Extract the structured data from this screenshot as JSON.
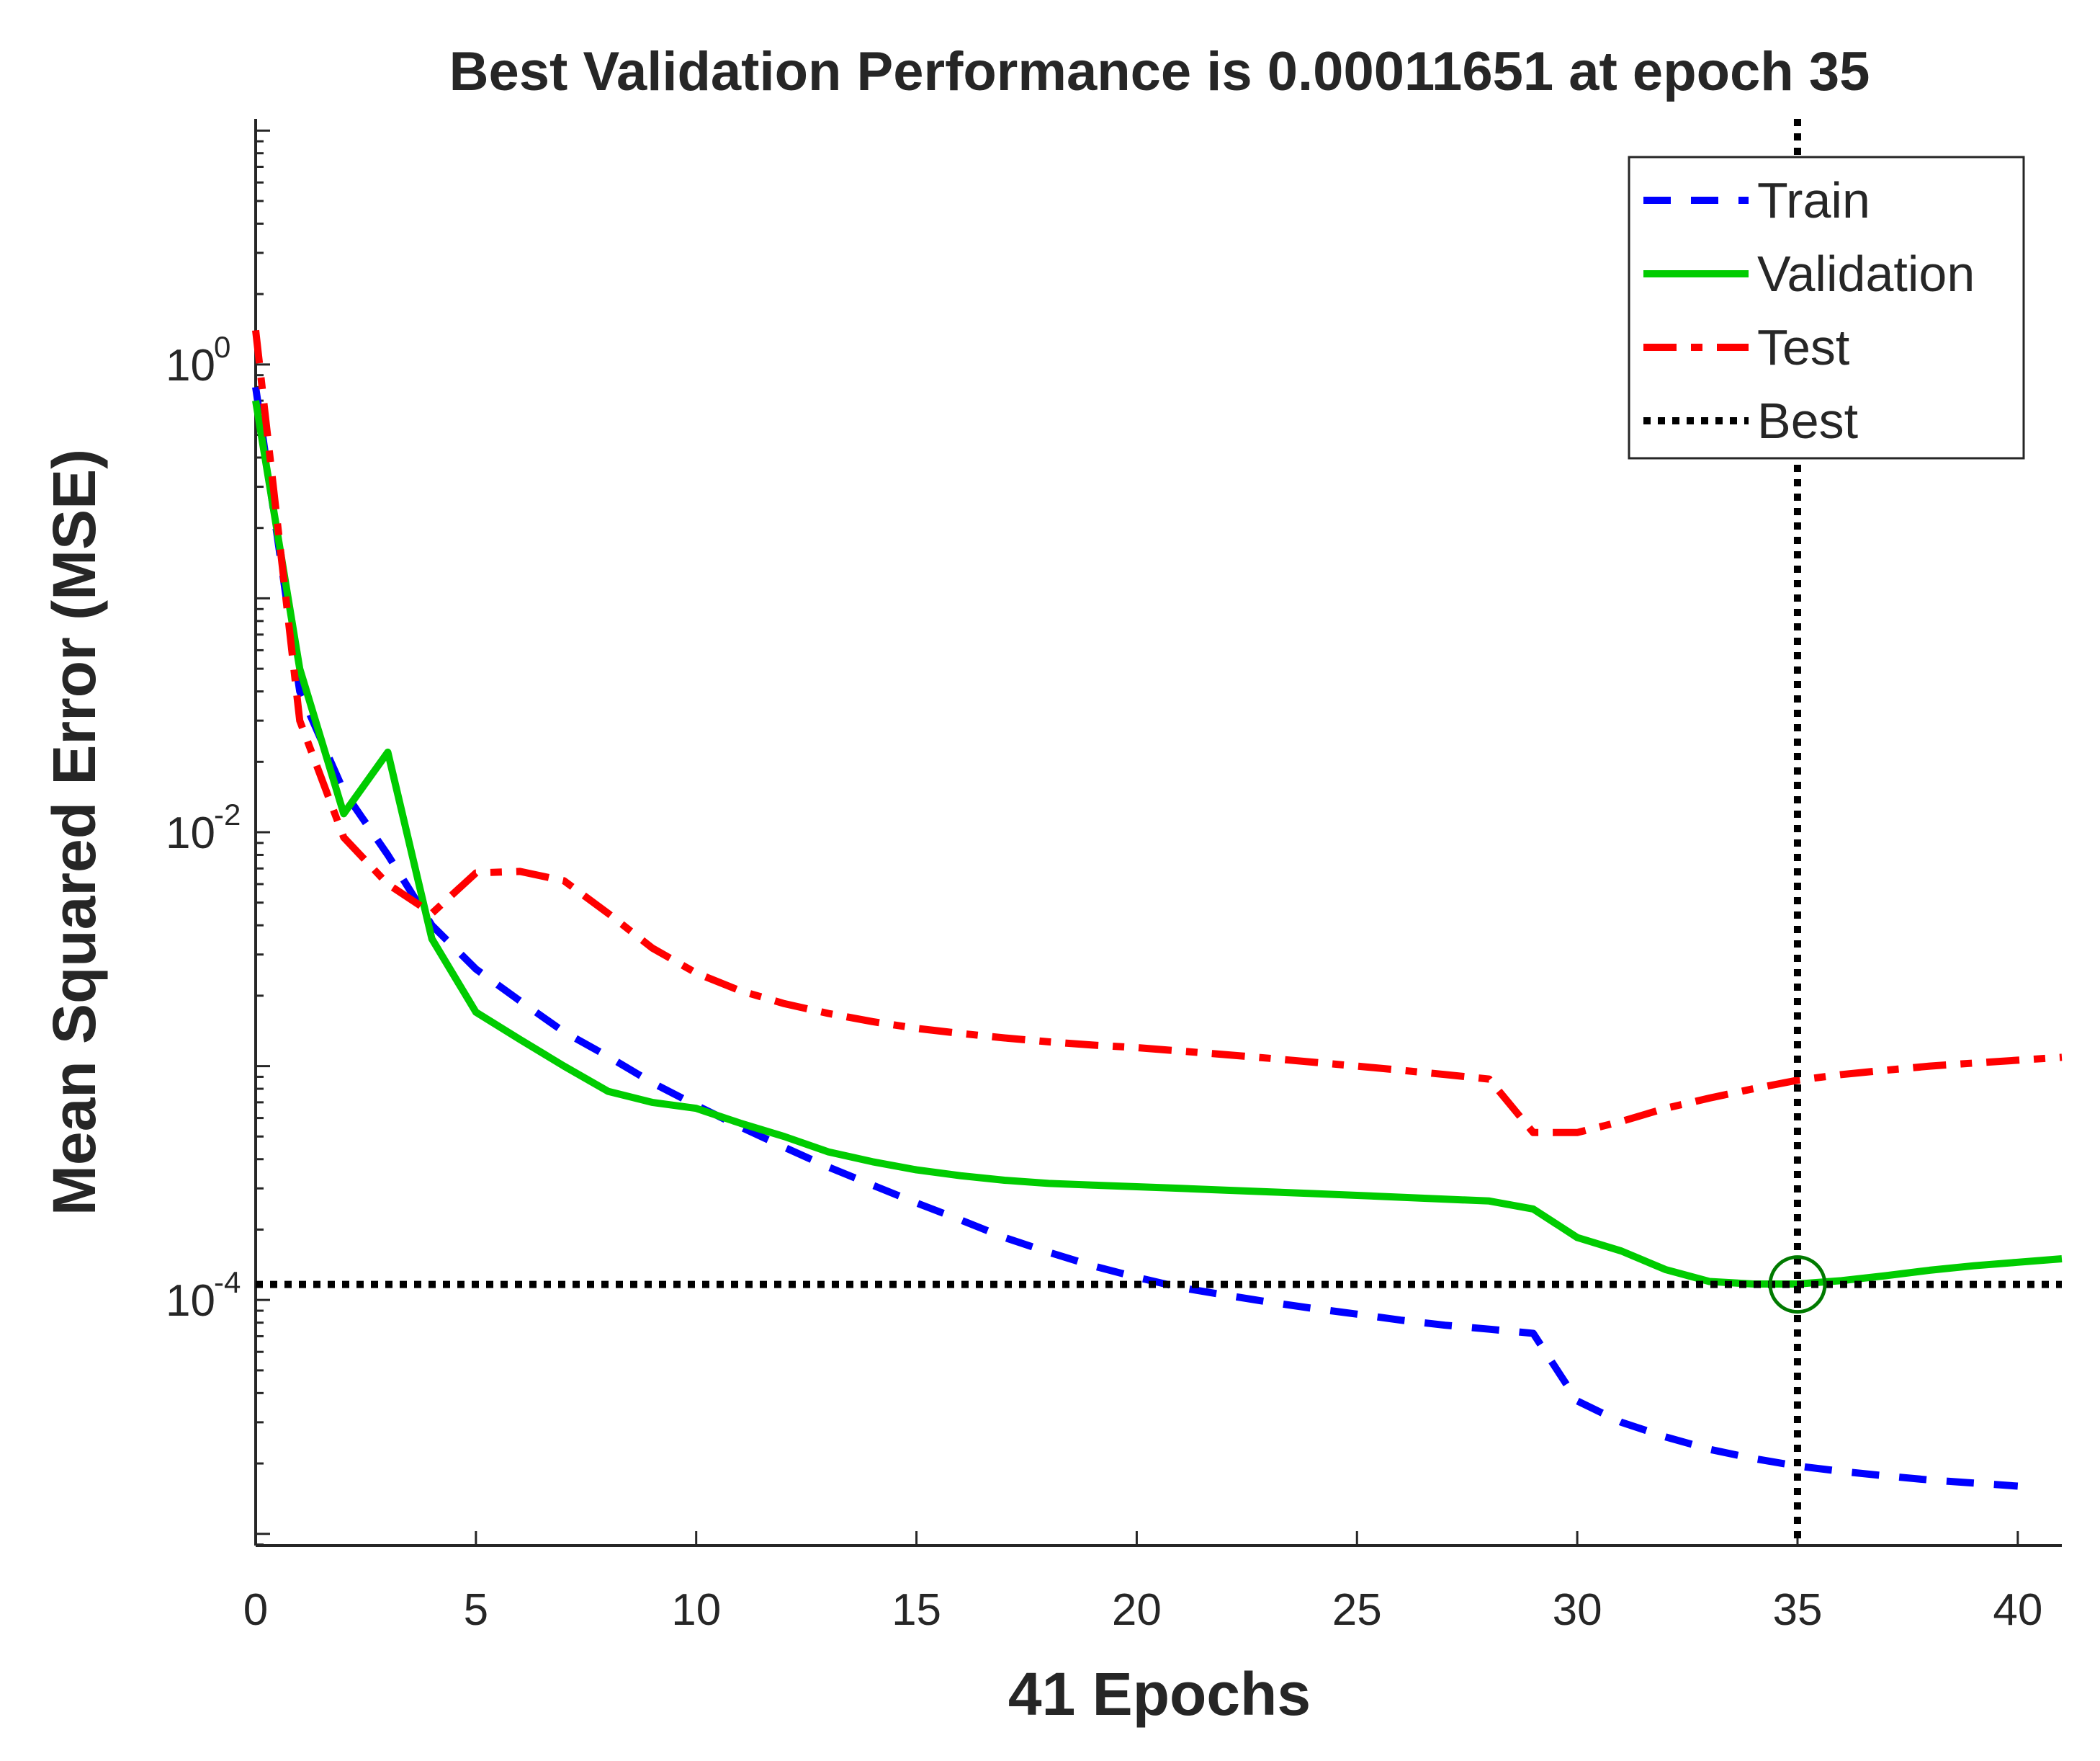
{
  "chart_data": {
    "type": "line",
    "title": "Best Validation Performance is 0.00011651 at epoch 35",
    "xlabel": "41 Epochs",
    "ylabel": "Mean Squared Error  (MSE)",
    "xlim": [
      0,
      41
    ],
    "ylim_log10": [
      -5.05,
      1.05
    ],
    "yscale": "log",
    "x_ticks": [
      0,
      5,
      10,
      15,
      20,
      25,
      30,
      35,
      40
    ],
    "y_ticks": [
      {
        "value": 1,
        "base": "10",
        "exponent": "0"
      },
      {
        "value": 0.01,
        "base": "10",
        "exponent": "-2"
      },
      {
        "value": 0.0001,
        "base": "10",
        "exponent": "-4"
      }
    ],
    "legend_position": "top-right",
    "best": {
      "epoch": 35,
      "value": 0.00011651,
      "color": "#000000",
      "marker_color": "#007a00"
    },
    "series": [
      {
        "name": "Train",
        "color": "#0000ff",
        "style": "dashed",
        "x": [
          0,
          1,
          2,
          3,
          4,
          5,
          6,
          7,
          8,
          9,
          10,
          11,
          12,
          13,
          14,
          15,
          16,
          17,
          18,
          19,
          20,
          21,
          22,
          23,
          24,
          25,
          26,
          27,
          28,
          29,
          30,
          31,
          32,
          33,
          34,
          35,
          36,
          37,
          38,
          39,
          40
        ],
        "values": [
          0.8,
          0.04,
          0.015,
          0.008,
          0.004,
          0.0026,
          0.0019,
          0.0014,
          0.0011,
          0.00085,
          0.00068,
          0.00055,
          0.00045,
          0.00037,
          0.00031,
          0.00026,
          0.00022,
          0.000185,
          0.00016,
          0.00014,
          0.000125,
          0.000113,
          0.000105,
          9.8e-05,
          9.2e-05,
          8.7e-05,
          8.2e-05,
          7.8e-05,
          7.5e-05,
          7.2e-05,
          3.7e-05,
          3e-05,
          2.6e-05,
          2.3e-05,
          2.1e-05,
          1.95e-05,
          1.85e-05,
          1.77e-05,
          1.7e-05,
          1.65e-05,
          1.6e-05
        ]
      },
      {
        "name": "Validation",
        "color": "#00cc00",
        "style": "solid",
        "x": [
          0,
          1,
          2,
          3,
          4,
          5,
          6,
          7,
          8,
          9,
          10,
          11,
          12,
          13,
          14,
          15,
          16,
          17,
          18,
          19,
          20,
          21,
          22,
          23,
          24,
          25,
          26,
          27,
          28,
          29,
          30,
          31,
          32,
          33,
          34,
          35,
          36,
          37,
          38,
          39,
          40,
          41
        ],
        "values": [
          0.7,
          0.05,
          0.012,
          0.022,
          0.0035,
          0.0017,
          0.0013,
          0.001,
          0.00078,
          0.0007,
          0.00066,
          0.00057,
          0.0005,
          0.00043,
          0.00039,
          0.00036,
          0.00034,
          0.000325,
          0.000315,
          0.00031,
          0.000305,
          0.0003,
          0.000295,
          0.00029,
          0.000285,
          0.00028,
          0.000275,
          0.00027,
          0.000265,
          0.000245,
          0.000185,
          0.000162,
          0.000135,
          0.00012,
          0.000117,
          0.000117,
          0.000121,
          0.000127,
          0.000134,
          0.00014,
          0.000145,
          0.00015
        ]
      },
      {
        "name": "Test",
        "color": "#ff0000",
        "style": "dashdot",
        "x": [
          0,
          1,
          2,
          3,
          4,
          5,
          6,
          7,
          8,
          9,
          10,
          11,
          12,
          13,
          14,
          15,
          16,
          17,
          18,
          19,
          20,
          21,
          22,
          23,
          24,
          25,
          26,
          27,
          28,
          29,
          30,
          31,
          32,
          33,
          34,
          35,
          36,
          37,
          38,
          39,
          40,
          41
        ],
        "values": [
          1.4,
          0.03,
          0.0095,
          0.006,
          0.0045,
          0.0067,
          0.0068,
          0.0062,
          0.0045,
          0.0032,
          0.0025,
          0.0021,
          0.00185,
          0.00168,
          0.00155,
          0.00145,
          0.00138,
          0.00132,
          0.00127,
          0.00123,
          0.0012,
          0.00116,
          0.00112,
          0.00108,
          0.00104,
          0.001,
          0.00096,
          0.00092,
          0.00088,
          0.00052,
          0.00052,
          0.00058,
          0.00066,
          0.00073,
          0.0008,
          0.00087,
          0.00092,
          0.00096,
          0.001,
          0.00103,
          0.00106,
          0.00109
        ]
      }
    ]
  }
}
